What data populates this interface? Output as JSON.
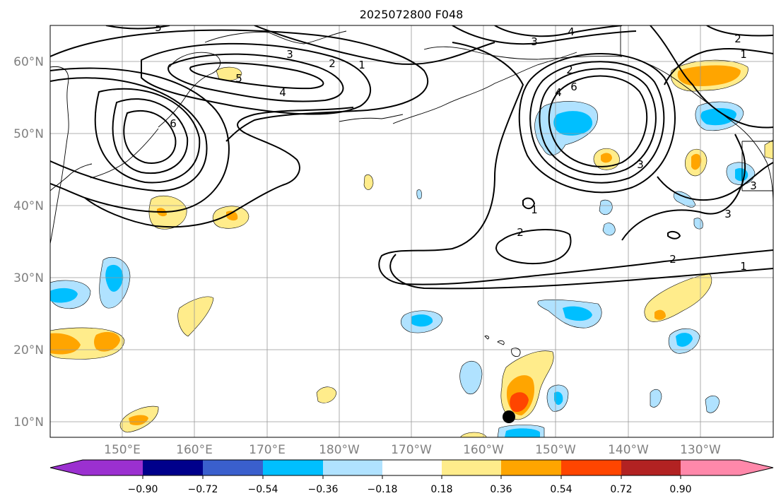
{
  "title": "2025072800 F048",
  "lat_labels": [
    "60°N",
    "50°N",
    "40°N",
    "30°N",
    "20°N",
    "10°N"
  ],
  "lon_labels": [
    "150°E",
    "160°E",
    "170°E",
    "180°W",
    "170°W",
    "160°W",
    "150°W",
    "140°W",
    "130°W"
  ],
  "contour_labels": [
    "5",
    "3",
    "2",
    "1",
    "4",
    "6",
    "5",
    "4",
    "3",
    "4",
    "2",
    "6",
    "3",
    "3",
    "1",
    "2",
    "2",
    "1",
    "1",
    "2",
    "3"
  ],
  "colorbar": {
    "tick_labels": [
      "−0.90",
      "−0.72",
      "−0.54",
      "−0.36",
      "−0.18",
      "0.18",
      "0.36",
      "0.54",
      "0.72",
      "0.90"
    ],
    "colors": [
      "#9b30d0",
      "#00008b",
      "#3a5fcd",
      "#00bfff",
      "#b0e2ff",
      "#ffffff",
      "#ffec8b",
      "#ffa500",
      "#ff4500",
      "#b22222",
      "#ff88aa"
    ]
  },
  "colors": {
    "light_blue": "#b0e2ff",
    "blue": "#00bfff",
    "dark_blue": "#3a5fcd",
    "light_yellow": "#ffec8b",
    "orange": "#ffa500",
    "red_orange": "#ff4500"
  }
}
